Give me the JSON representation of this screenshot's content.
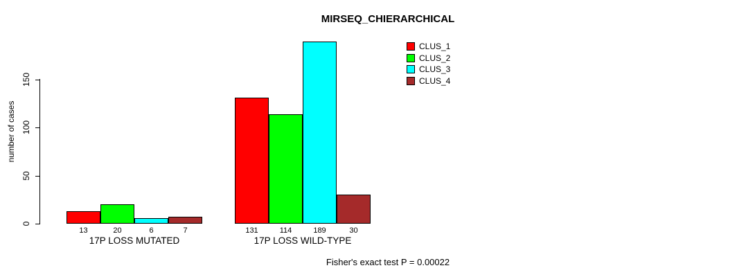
{
  "title": "MIRSEQ_CHIERARCHICAL",
  "footer": "Fisher's exact test P = 0.00022",
  "colors": {
    "background": "#ffffff",
    "axis": "#000000",
    "text": "#000000"
  },
  "chart_data": {
    "type": "bar",
    "title": "MIRSEQ_CHIERARCHICAL",
    "ylabel": "number of cases",
    "xlabel": "",
    "categories": [
      "17P LOSS MUTATED",
      "17P LOSS WILD-TYPE"
    ],
    "series": [
      {
        "name": "CLUS_1",
        "color": "#ff0000",
        "values": [
          13,
          131
        ]
      },
      {
        "name": "CLUS_2",
        "color": "#00ff00",
        "values": [
          20,
          114
        ]
      },
      {
        "name": "CLUS_3",
        "color": "#00ffff",
        "values": [
          6,
          189
        ]
      },
      {
        "name": "CLUS_4",
        "color": "#a52a2a",
        "values": [
          7,
          30
        ]
      }
    ],
    "bar_value_labels": {
      "17P LOSS MUTATED": [
        13,
        20,
        6,
        7
      ],
      "17P LOSS WILD-TYPE": [
        131,
        114,
        189,
        30
      ]
    },
    "yticks": [
      0,
      50,
      100,
      150
    ],
    "ylim": [
      0,
      189
    ],
    "grid": false,
    "legend_position": "top-right",
    "legend_entries": [
      "CLUS_1",
      "CLUS_2",
      "CLUS_3",
      "CLUS_4"
    ],
    "annotation": "Fisher's exact test P = 0.00022"
  }
}
